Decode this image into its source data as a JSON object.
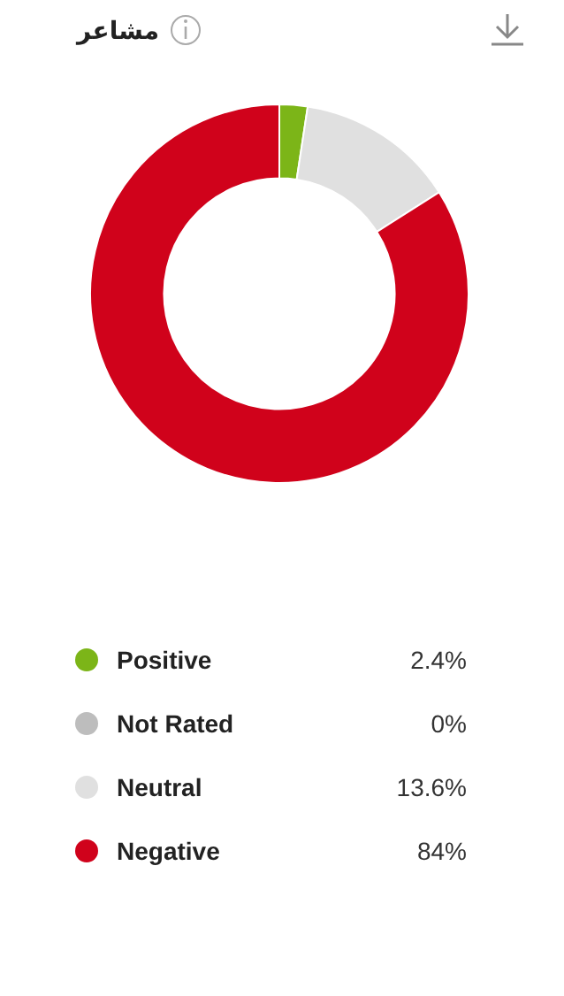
{
  "chart_data": {
    "type": "donut",
    "title": "مشاعر",
    "categories": [
      "Positive",
      "Not Rated",
      "Neutral",
      "Negative"
    ],
    "values": [
      2.4,
      0,
      13.6,
      84
    ],
    "colors": [
      "#7cb518",
      "#bdbdbd",
      "#e0e0e0",
      "#d0021b"
    ],
    "value_labels": [
      "2.4%",
      "0%",
      "13.6%",
      "84%"
    ],
    "legend": "bottom"
  }
}
